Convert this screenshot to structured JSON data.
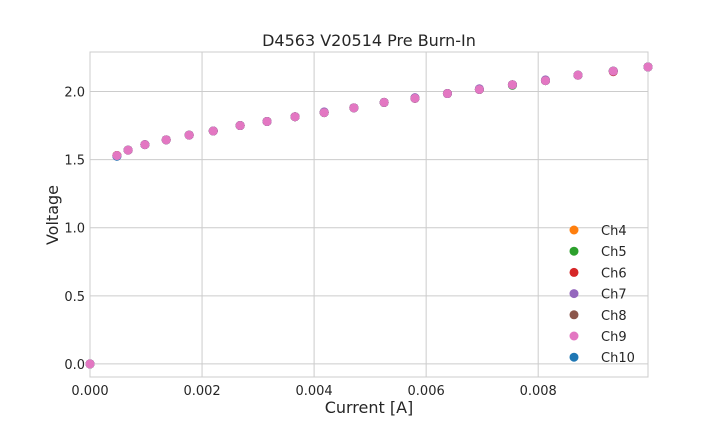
{
  "chart_data": {
    "type": "scatter",
    "title": "D4563 V20514 Pre Burn-In",
    "xlabel": "Current [A]",
    "ylabel": "Voltage",
    "xlim": [
      0,
      0.00996
    ],
    "ylim": [
      -0.096,
      2.29
    ],
    "xticks": [
      "0.000",
      "0.002",
      "0.004",
      "0.006",
      "0.008"
    ],
    "xtick_values": [
      0,
      0.002,
      0.004,
      0.006,
      0.008
    ],
    "yticks": [
      "0.0",
      "0.5",
      "1.0",
      "1.5",
      "2.0"
    ],
    "ytick_values": [
      0,
      0.5,
      1.0,
      1.5,
      2.0
    ],
    "grid": true,
    "legend_position": "lower-right",
    "x": [
      0,
      0.00048,
      0.00068,
      0.00098,
      0.00136,
      0.00177,
      0.0022,
      0.00268,
      0.00316,
      0.00366,
      0.00418,
      0.00471,
      0.00525,
      0.0058,
      0.00638,
      0.00695,
      0.00754,
      0.00813,
      0.00871,
      0.00934,
      0.00996
    ],
    "series": [
      {
        "name": "Ch4",
        "color": "#ff7f0e",
        "values": [
          0,
          1.53,
          1.57,
          1.61,
          1.645,
          1.68,
          1.71,
          1.75,
          1.78,
          1.815,
          1.845,
          1.88,
          1.92,
          1.95,
          1.985,
          2.015,
          2.05,
          2.08,
          2.12,
          2.15,
          2.18
        ]
      },
      {
        "name": "Ch5",
        "color": "#2ca02c",
        "values": [
          0,
          1.53,
          1.57,
          1.61,
          1.645,
          1.68,
          1.71,
          1.75,
          1.78,
          1.815,
          1.845,
          1.88,
          1.92,
          1.95,
          1.985,
          2.015,
          2.045,
          2.08,
          2.12,
          2.15,
          2.18
        ]
      },
      {
        "name": "Ch6",
        "color": "#d62728",
        "values": [
          0,
          1.53,
          1.57,
          1.61,
          1.645,
          1.68,
          1.71,
          1.75,
          1.78,
          1.815,
          1.845,
          1.88,
          1.92,
          1.95,
          1.985,
          2.015,
          2.05,
          2.08,
          2.12,
          2.145,
          2.18
        ]
      },
      {
        "name": "Ch7",
        "color": "#9467bd",
        "values": [
          0,
          1.525,
          1.57,
          1.61,
          1.645,
          1.68,
          1.71,
          1.75,
          1.78,
          1.815,
          1.85,
          1.88,
          1.92,
          1.955,
          1.985,
          2.02,
          2.05,
          2.085,
          2.12,
          2.15,
          2.18
        ]
      },
      {
        "name": "Ch8",
        "color": "#8c564b",
        "values": [
          0,
          1.53,
          1.57,
          1.61,
          1.645,
          1.68,
          1.71,
          1.75,
          1.78,
          1.815,
          1.845,
          1.88,
          1.92,
          1.95,
          1.985,
          2.015,
          2.05,
          2.08,
          2.12,
          2.15,
          2.18
        ]
      },
      {
        "name": "Ch10",
        "color": "#1f77b4",
        "values": [
          0,
          1.525,
          1.57,
          1.61,
          1.645,
          1.68,
          1.71,
          1.75,
          1.78,
          1.815,
          1.845,
          1.88,
          1.92,
          1.95,
          1.985,
          2.015,
          2.05,
          2.08,
          2.12,
          2.15,
          2.18
        ]
      },
      {
        "name": "Ch9",
        "color": "#e377c2",
        "values": [
          0,
          1.53,
          1.57,
          1.61,
          1.645,
          1.68,
          1.71,
          1.75,
          1.78,
          1.815,
          1.845,
          1.88,
          1.92,
          1.95,
          1.985,
          2.015,
          2.05,
          2.08,
          2.12,
          2.15,
          2.18
        ]
      }
    ],
    "legend_order": [
      "Ch4",
      "Ch5",
      "Ch6",
      "Ch7",
      "Ch8",
      "Ch9",
      "Ch10"
    ]
  }
}
